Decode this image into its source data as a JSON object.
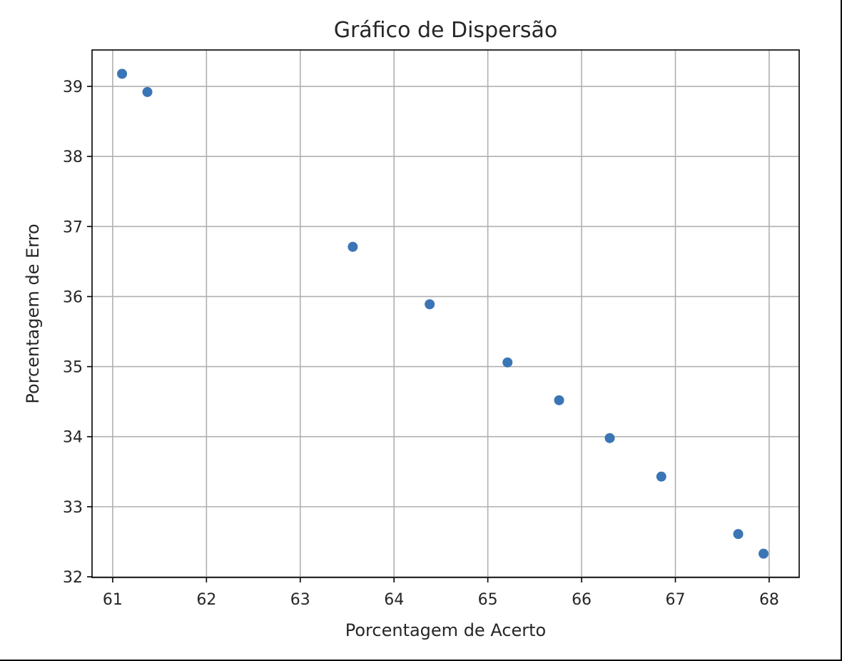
{
  "chart_data": {
    "type": "scatter",
    "title": "Gráfico de Dispersão",
    "xlabel": "Porcentagem de Acerto",
    "ylabel": "Porcentagem de Erro",
    "xlim": [
      60.78,
      68.32
    ],
    "ylim": [
      31.99,
      39.52
    ],
    "xticks": [
      "61",
      "62",
      "63",
      "64",
      "65",
      "66",
      "67",
      "68"
    ],
    "yticks": [
      "32",
      "33",
      "34",
      "35",
      "36",
      "37",
      "38",
      "39"
    ],
    "grid": true,
    "point_color": "#3a75b5",
    "x": [
      61.1,
      61.37,
      63.56,
      64.38,
      65.21,
      65.76,
      66.3,
      66.85,
      67.67,
      67.94
    ],
    "y": [
      39.18,
      38.92,
      36.71,
      35.89,
      35.06,
      34.52,
      33.98,
      33.43,
      32.61,
      32.33
    ]
  }
}
